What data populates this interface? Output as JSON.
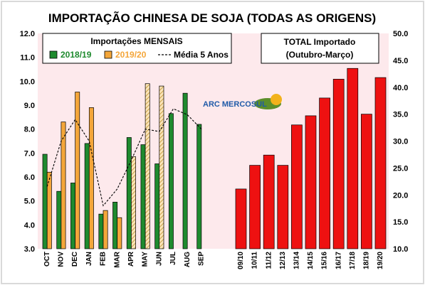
{
  "title": "IMPORTAÇÃO CHINESA DE SOJA (TODAS AS ORIGENS)",
  "logo_text": "ARC MERCOSUL",
  "colors": {
    "green": "#1e8a2e",
    "orange": "#f4a63a",
    "red": "#ee1111",
    "pink_bg": "#fde9ec",
    "frame": "#d9d9d9",
    "hatch": "#c9a24a"
  },
  "chart_data": [
    {
      "type": "bar",
      "legend_title": "Importações MENSAIS",
      "categories": [
        "OCT",
        "NOV",
        "DEC",
        "JAN",
        "FEB",
        "MAR",
        "APR",
        "MAY",
        "JUN",
        "JUL",
        "AUG",
        "SEP"
      ],
      "ylim": [
        3.0,
        12.0
      ],
      "yticks": [
        "3.0",
        "4.0",
        "5.0",
        "6.0",
        "7.0",
        "8.0",
        "9.0",
        "10.0",
        "11.0",
        "12.0"
      ],
      "series": [
        {
          "name": "2018/19",
          "kind": "bar",
          "values": [
            6.95,
            5.4,
            5.75,
            7.4,
            4.45,
            4.95,
            7.65,
            7.35,
            6.55,
            8.65,
            9.5,
            8.2
          ]
        },
        {
          "name": "2019/20",
          "kind": "bar",
          "values": [
            6.2,
            8.3,
            9.55,
            8.9,
            4.6,
            4.3,
            6.85,
            9.9,
            9.8,
            null,
            null,
            null
          ],
          "hatched": [
            false,
            false,
            false,
            false,
            false,
            false,
            true,
            true,
            true,
            false,
            false,
            false
          ]
        },
        {
          "name": "Média 5 Anos",
          "kind": "line",
          "values": [
            5.6,
            7.5,
            8.4,
            7.5,
            4.8,
            5.5,
            6.7,
            8.0,
            7.9,
            8.85,
            8.6,
            8.0
          ]
        }
      ],
      "legend_position": "top"
    },
    {
      "type": "bar",
      "legend_title": "TOTAL Importado",
      "legend_subtitle": "(Outubro-Março)",
      "categories": [
        "09/10",
        "10/11",
        "11/12",
        "12/13",
        "13/14",
        "14/15",
        "15/16",
        "16/17",
        "17/18",
        "18/19",
        "19/20"
      ],
      "values": [
        21.1,
        25.5,
        27.4,
        25.5,
        33.0,
        34.7,
        38.0,
        41.5,
        43.5,
        35.0,
        41.8
      ],
      "ylim": [
        10.0,
        50.0
      ],
      "yticks": [
        "10.0",
        "15.0",
        "20.0",
        "25.0",
        "30.0",
        "35.0",
        "40.0",
        "45.0",
        "50.0"
      ]
    }
  ]
}
